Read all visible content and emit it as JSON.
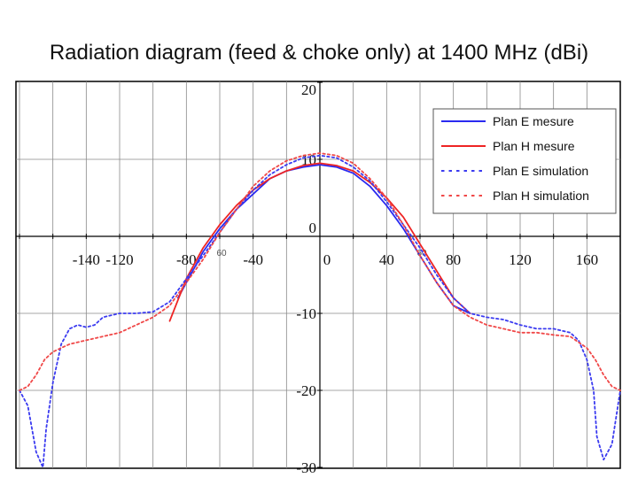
{
  "chart_data": {
    "type": "line",
    "title": "Radiation diagram (feed & choke only) at 1400 MHz (dBi)",
    "xlabel": "",
    "ylabel": "",
    "xlim": [
      -180,
      180
    ],
    "ylim": [
      -30,
      20
    ],
    "x_tick_labels": [
      {
        "value": -140,
        "label": "-140"
      },
      {
        "value": -120,
        "label": "-120"
      },
      {
        "value": -80,
        "label": "-80"
      },
      {
        "value": -40,
        "label": "-40"
      },
      {
        "value": 0,
        "label": "0"
      },
      {
        "value": 40,
        "label": "40"
      },
      {
        "value": 80,
        "label": "80"
      },
      {
        "value": 120,
        "label": "120"
      },
      {
        "value": 160,
        "label": "160"
      }
    ],
    "x_inner_tick_labels": [
      {
        "value": -60,
        "label": "60"
      },
      {
        "value": 60,
        "label": "60"
      }
    ],
    "y_tick_labels": [
      {
        "value": 20,
        "label": "20"
      },
      {
        "value": 10,
        "label": "10"
      },
      {
        "value": 0,
        "label": "0"
      },
      {
        "value": -10,
        "label": "-10"
      },
      {
        "value": -20,
        "label": "-20"
      },
      {
        "value": -30,
        "label": "-30"
      }
    ],
    "grid": true,
    "legend_position": "top-right",
    "series": [
      {
        "name": "Plan E mesure",
        "color": "#2a2af0",
        "style": "solid",
        "x": [
          -85,
          -80,
          -70,
          -60,
          -50,
          -40,
          -30,
          -20,
          -10,
          0,
          10,
          20,
          30,
          40,
          50,
          60,
          70,
          80,
          90
        ],
        "y": [
          -8,
          -6,
          -2,
          1,
          3.5,
          5.5,
          7.5,
          8.5,
          9,
          9.3,
          9,
          8.2,
          6.5,
          4,
          1,
          -2.5,
          -6,
          -9,
          -10
        ]
      },
      {
        "name": "Plan H mesure",
        "color": "#ee2424",
        "style": "solid",
        "x": [
          -90,
          -80,
          -70,
          -60,
          -50,
          -40,
          -30,
          -20,
          -10,
          0,
          10,
          20,
          30,
          40,
          50,
          60,
          70,
          80,
          90
        ],
        "y": [
          -11,
          -5.5,
          -1.5,
          1.5,
          4,
          6,
          7.5,
          8.5,
          9.2,
          9.5,
          9.2,
          8.5,
          7,
          5,
          2.5,
          -1,
          -4.5,
          -8,
          -10
        ]
      },
      {
        "name": "Plan E simulation",
        "color": "#3b3bf0",
        "style": "dotted",
        "x": [
          -180,
          -175,
          -170,
          -166,
          -164,
          -160,
          -155,
          -150,
          -145,
          -140,
          -135,
          -130,
          -120,
          -110,
          -100,
          -90,
          -80,
          -70,
          -60,
          -50,
          -40,
          -30,
          -20,
          -10,
          0,
          10,
          20,
          30,
          40,
          50,
          60,
          70,
          80,
          90,
          100,
          110,
          120,
          130,
          140,
          150,
          155,
          160,
          164,
          166,
          170,
          175,
          180
        ],
        "y": [
          -20,
          -22,
          -28,
          -30,
          -25,
          -19,
          -14,
          -12,
          -11.5,
          -11.8,
          -11.5,
          -10.5,
          -10,
          -10,
          -9.8,
          -8.5,
          -5.5,
          -2.5,
          0.5,
          3.5,
          6,
          8,
          9.3,
          10.2,
          10.5,
          10.2,
          9,
          7.2,
          4.5,
          1.5,
          -1.5,
          -5,
          -8,
          -10,
          -10.5,
          -10.8,
          -11.5,
          -12,
          -12,
          -12.5,
          -13.5,
          -16,
          -20,
          -26,
          -29,
          -27,
          -20
        ]
      },
      {
        "name": "Plan H simulation",
        "color": "#f04848",
        "style": "dotted",
        "x": [
          -180,
          -175,
          -170,
          -165,
          -160,
          -155,
          -150,
          -140,
          -130,
          -120,
          -110,
          -100,
          -90,
          -80,
          -70,
          -60,
          -50,
          -40,
          -30,
          -20,
          -10,
          0,
          10,
          20,
          30,
          40,
          50,
          60,
          70,
          80,
          90,
          100,
          110,
          120,
          130,
          140,
          150,
          160,
          165,
          170,
          175,
          180
        ],
        "y": [
          -20,
          -19.5,
          -18,
          -16,
          -15,
          -14.5,
          -14,
          -13.5,
          -13,
          -12.5,
          -11.5,
          -10.5,
          -9,
          -6,
          -3,
          0.5,
          3.5,
          6.5,
          8.5,
          9.8,
          10.5,
          10.8,
          10.5,
          9.5,
          7.5,
          5,
          1.5,
          -2.5,
          -6,
          -9,
          -10.5,
          -11.5,
          -12,
          -12.5,
          -12.5,
          -12.8,
          -13,
          -14.5,
          -16,
          -18,
          -19.5,
          -20
        ]
      }
    ]
  }
}
